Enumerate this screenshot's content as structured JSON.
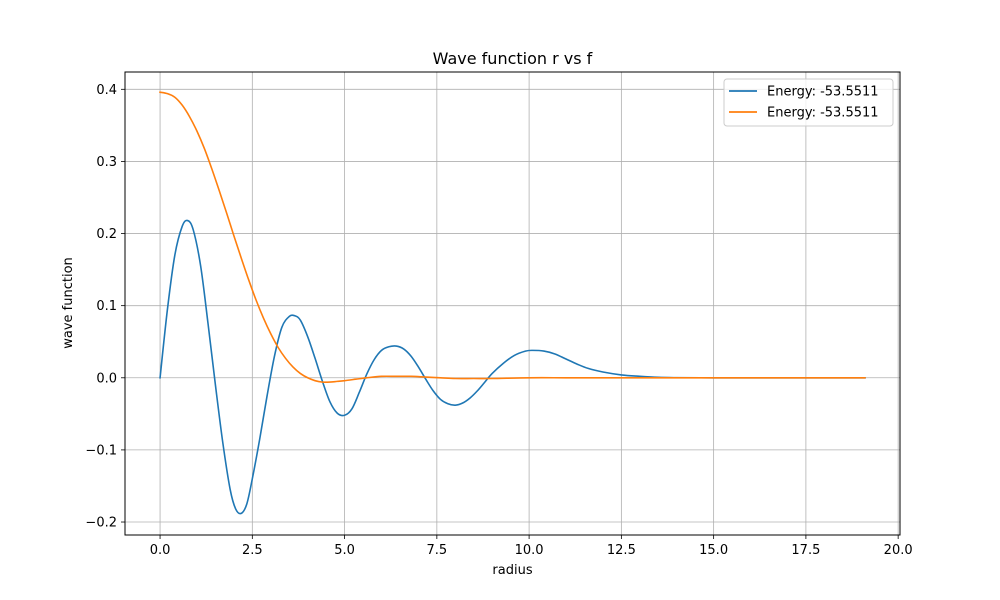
{
  "chart_data": {
    "type": "line",
    "title": "Wave function r vs f",
    "xlabel": "radius",
    "ylabel": "wave function",
    "xlim": [
      -0.95,
      20.05
    ],
    "ylim": [
      -0.218,
      0.424
    ],
    "xticks": [
      0.0,
      2.5,
      5.0,
      7.5,
      10.0,
      12.5,
      15.0,
      17.5,
      20.0
    ],
    "xtick_labels": [
      "0.0",
      "2.5",
      "5.0",
      "7.5",
      "10.0",
      "12.5",
      "15.0",
      "17.5",
      "20.0"
    ],
    "yticks": [
      -0.2,
      -0.1,
      0.0,
      0.1,
      0.2,
      0.3,
      0.4
    ],
    "ytick_labels": [
      "−0.2",
      "−0.1",
      "0.0",
      "0.1",
      "0.2",
      "0.3",
      "0.4"
    ],
    "grid": true,
    "legend_position": "top-right",
    "series": [
      {
        "name": "Energy: -53.5511",
        "color": "#1f77b4",
        "x": [
          0.0,
          0.2,
          0.4,
          0.6,
          0.75,
          0.9,
          1.1,
          1.3,
          1.5,
          1.7,
          1.9,
          2.05,
          2.2,
          2.35,
          2.5,
          2.7,
          2.9,
          3.1,
          3.3,
          3.5,
          3.65,
          3.8,
          4.0,
          4.2,
          4.4,
          4.6,
          4.8,
          5.0,
          5.2,
          5.4,
          5.6,
          5.8,
          6.0,
          6.2,
          6.4,
          6.6,
          6.8,
          7.0,
          7.2,
          7.4,
          7.6,
          7.8,
          8.0,
          8.2,
          8.4,
          8.6,
          8.8,
          9.0,
          9.3,
          9.6,
          9.9,
          10.1,
          10.4,
          10.7,
          11.0,
          11.3,
          11.6,
          12.0,
          12.5,
          13.0,
          13.5,
          14.0,
          15.0,
          16.0,
          17.0,
          18.0,
          19.1
        ],
        "y": [
          0.0,
          0.095,
          0.17,
          0.21,
          0.218,
          0.205,
          0.155,
          0.075,
          -0.01,
          -0.09,
          -0.155,
          -0.182,
          -0.188,
          -0.175,
          -0.14,
          -0.085,
          -0.025,
          0.03,
          0.07,
          0.085,
          0.086,
          0.08,
          0.057,
          0.027,
          -0.005,
          -0.033,
          -0.049,
          -0.052,
          -0.043,
          -0.02,
          0.005,
          0.025,
          0.038,
          0.043,
          0.044,
          0.04,
          0.03,
          0.015,
          -0.002,
          -0.018,
          -0.03,
          -0.036,
          -0.038,
          -0.035,
          -0.028,
          -0.018,
          -0.006,
          0.006,
          0.02,
          0.031,
          0.037,
          0.038,
          0.037,
          0.033,
          0.026,
          0.019,
          0.013,
          0.008,
          0.004,
          0.002,
          0.0006,
          0.0002,
          0.0,
          0.0,
          0.0,
          0.0,
          0.0
        ]
      },
      {
        "name": "Energy: -53.5511",
        "color": "#ff7f0e",
        "x": [
          0.0,
          0.2,
          0.4,
          0.6,
          0.8,
          1.0,
          1.2,
          1.4,
          1.6,
          1.8,
          2.0,
          2.2,
          2.4,
          2.6,
          2.8,
          3.0,
          3.2,
          3.4,
          3.6,
          3.8,
          4.0,
          4.2,
          4.4,
          4.6,
          4.8,
          5.0,
          5.3,
          5.6,
          6.0,
          6.4,
          6.8,
          7.2,
          7.6,
          8.0,
          8.5,
          9.0,
          10.0,
          11.0,
          12.0,
          13.0,
          14.0,
          16.0,
          18.0,
          19.1
        ],
        "y": [
          0.396,
          0.394,
          0.389,
          0.378,
          0.362,
          0.342,
          0.318,
          0.29,
          0.26,
          0.229,
          0.197,
          0.166,
          0.136,
          0.108,
          0.083,
          0.061,
          0.042,
          0.027,
          0.015,
          0.006,
          0.0,
          -0.004,
          -0.006,
          -0.006,
          -0.005,
          -0.004,
          -0.002,
          0.0,
          0.002,
          0.002,
          0.002,
          0.001,
          0.0,
          -0.001,
          -0.001,
          -0.001,
          0.0,
          0.0,
          0.0,
          0.0,
          0.0,
          0.0,
          0.0,
          0.0
        ]
      }
    ]
  }
}
